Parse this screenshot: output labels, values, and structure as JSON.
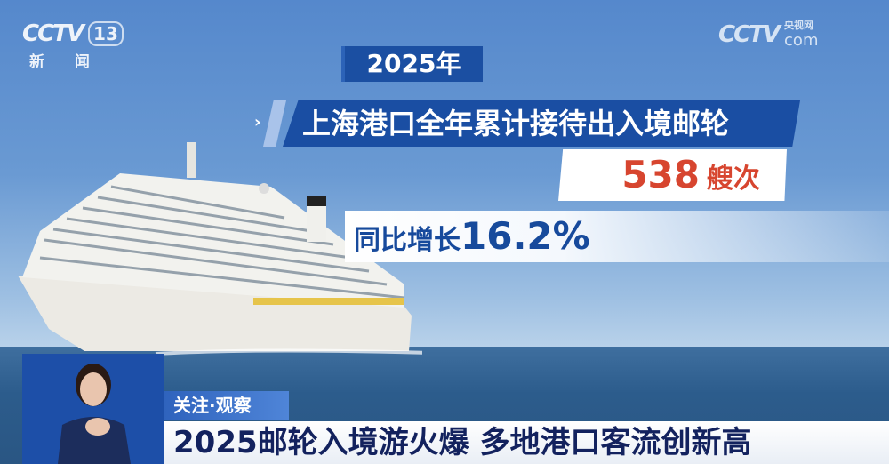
{
  "channel_logo": {
    "brand": "CCTV",
    "number": "13",
    "name": "新 闻"
  },
  "site_logo": {
    "brand": "CCTV",
    "sub": "央视网",
    "domain": "com"
  },
  "graphic": {
    "year": "2025年",
    "headline": "上海港口全年累计接待出入境邮轮",
    "value": "538",
    "unit": "艘次",
    "growth_label": "同比增长",
    "growth_value": "16.2%"
  },
  "lower_third": {
    "tag": "关注·观察",
    "title": "2025邮轮入境游火爆 多地港口客流创新高"
  },
  "colors": {
    "accent_blue": "#1a4ea3",
    "value_red": "#d7452f",
    "title_navy": "#13225e"
  }
}
